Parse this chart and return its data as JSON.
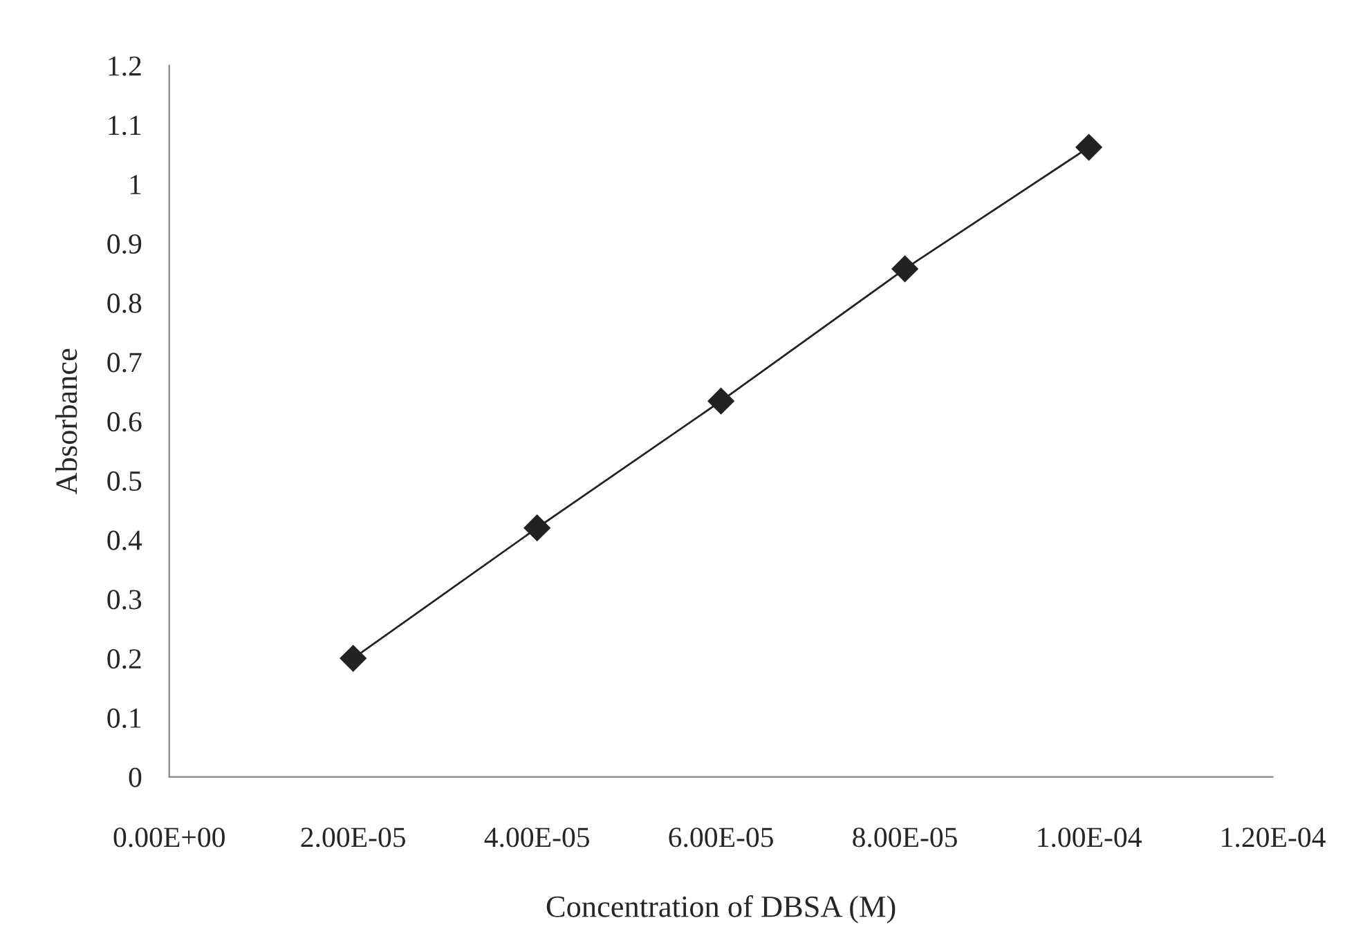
{
  "chart_data": {
    "type": "line",
    "xlabel": "Concentration of DBSA (M)",
    "ylabel": "Absorbance",
    "x": [
      2e-05,
      4e-05,
      6e-05,
      8e-05,
      0.0001
    ],
    "series": [
      {
        "color": "#222222",
        "values": [
          0.2,
          0.42,
          0.634,
          0.857,
          1.062
        ]
      }
    ],
    "marker": "diamond",
    "line_style": "solid",
    "grid": false,
    "legend": false,
    "xlim": [
      0,
      0.00012
    ],
    "xticks": [
      {
        "value": 0,
        "label": "0.00E+00"
      },
      {
        "value": 2e-05,
        "label": "2.00E-05"
      },
      {
        "value": 4e-05,
        "label": "4.00E-05"
      },
      {
        "value": 6e-05,
        "label": "6.00E-05"
      },
      {
        "value": 8e-05,
        "label": "8.00E-05"
      },
      {
        "value": 0.0001,
        "label": "1.00E-04"
      },
      {
        "value": 0.00012,
        "label": "1.20E-04"
      }
    ],
    "ylim": [
      0,
      1.2
    ],
    "yticks": [
      0,
      0.1,
      0.2,
      0.3,
      0.4,
      0.5,
      0.6,
      0.7,
      0.8,
      0.9,
      1,
      1.1,
      1.2
    ]
  }
}
